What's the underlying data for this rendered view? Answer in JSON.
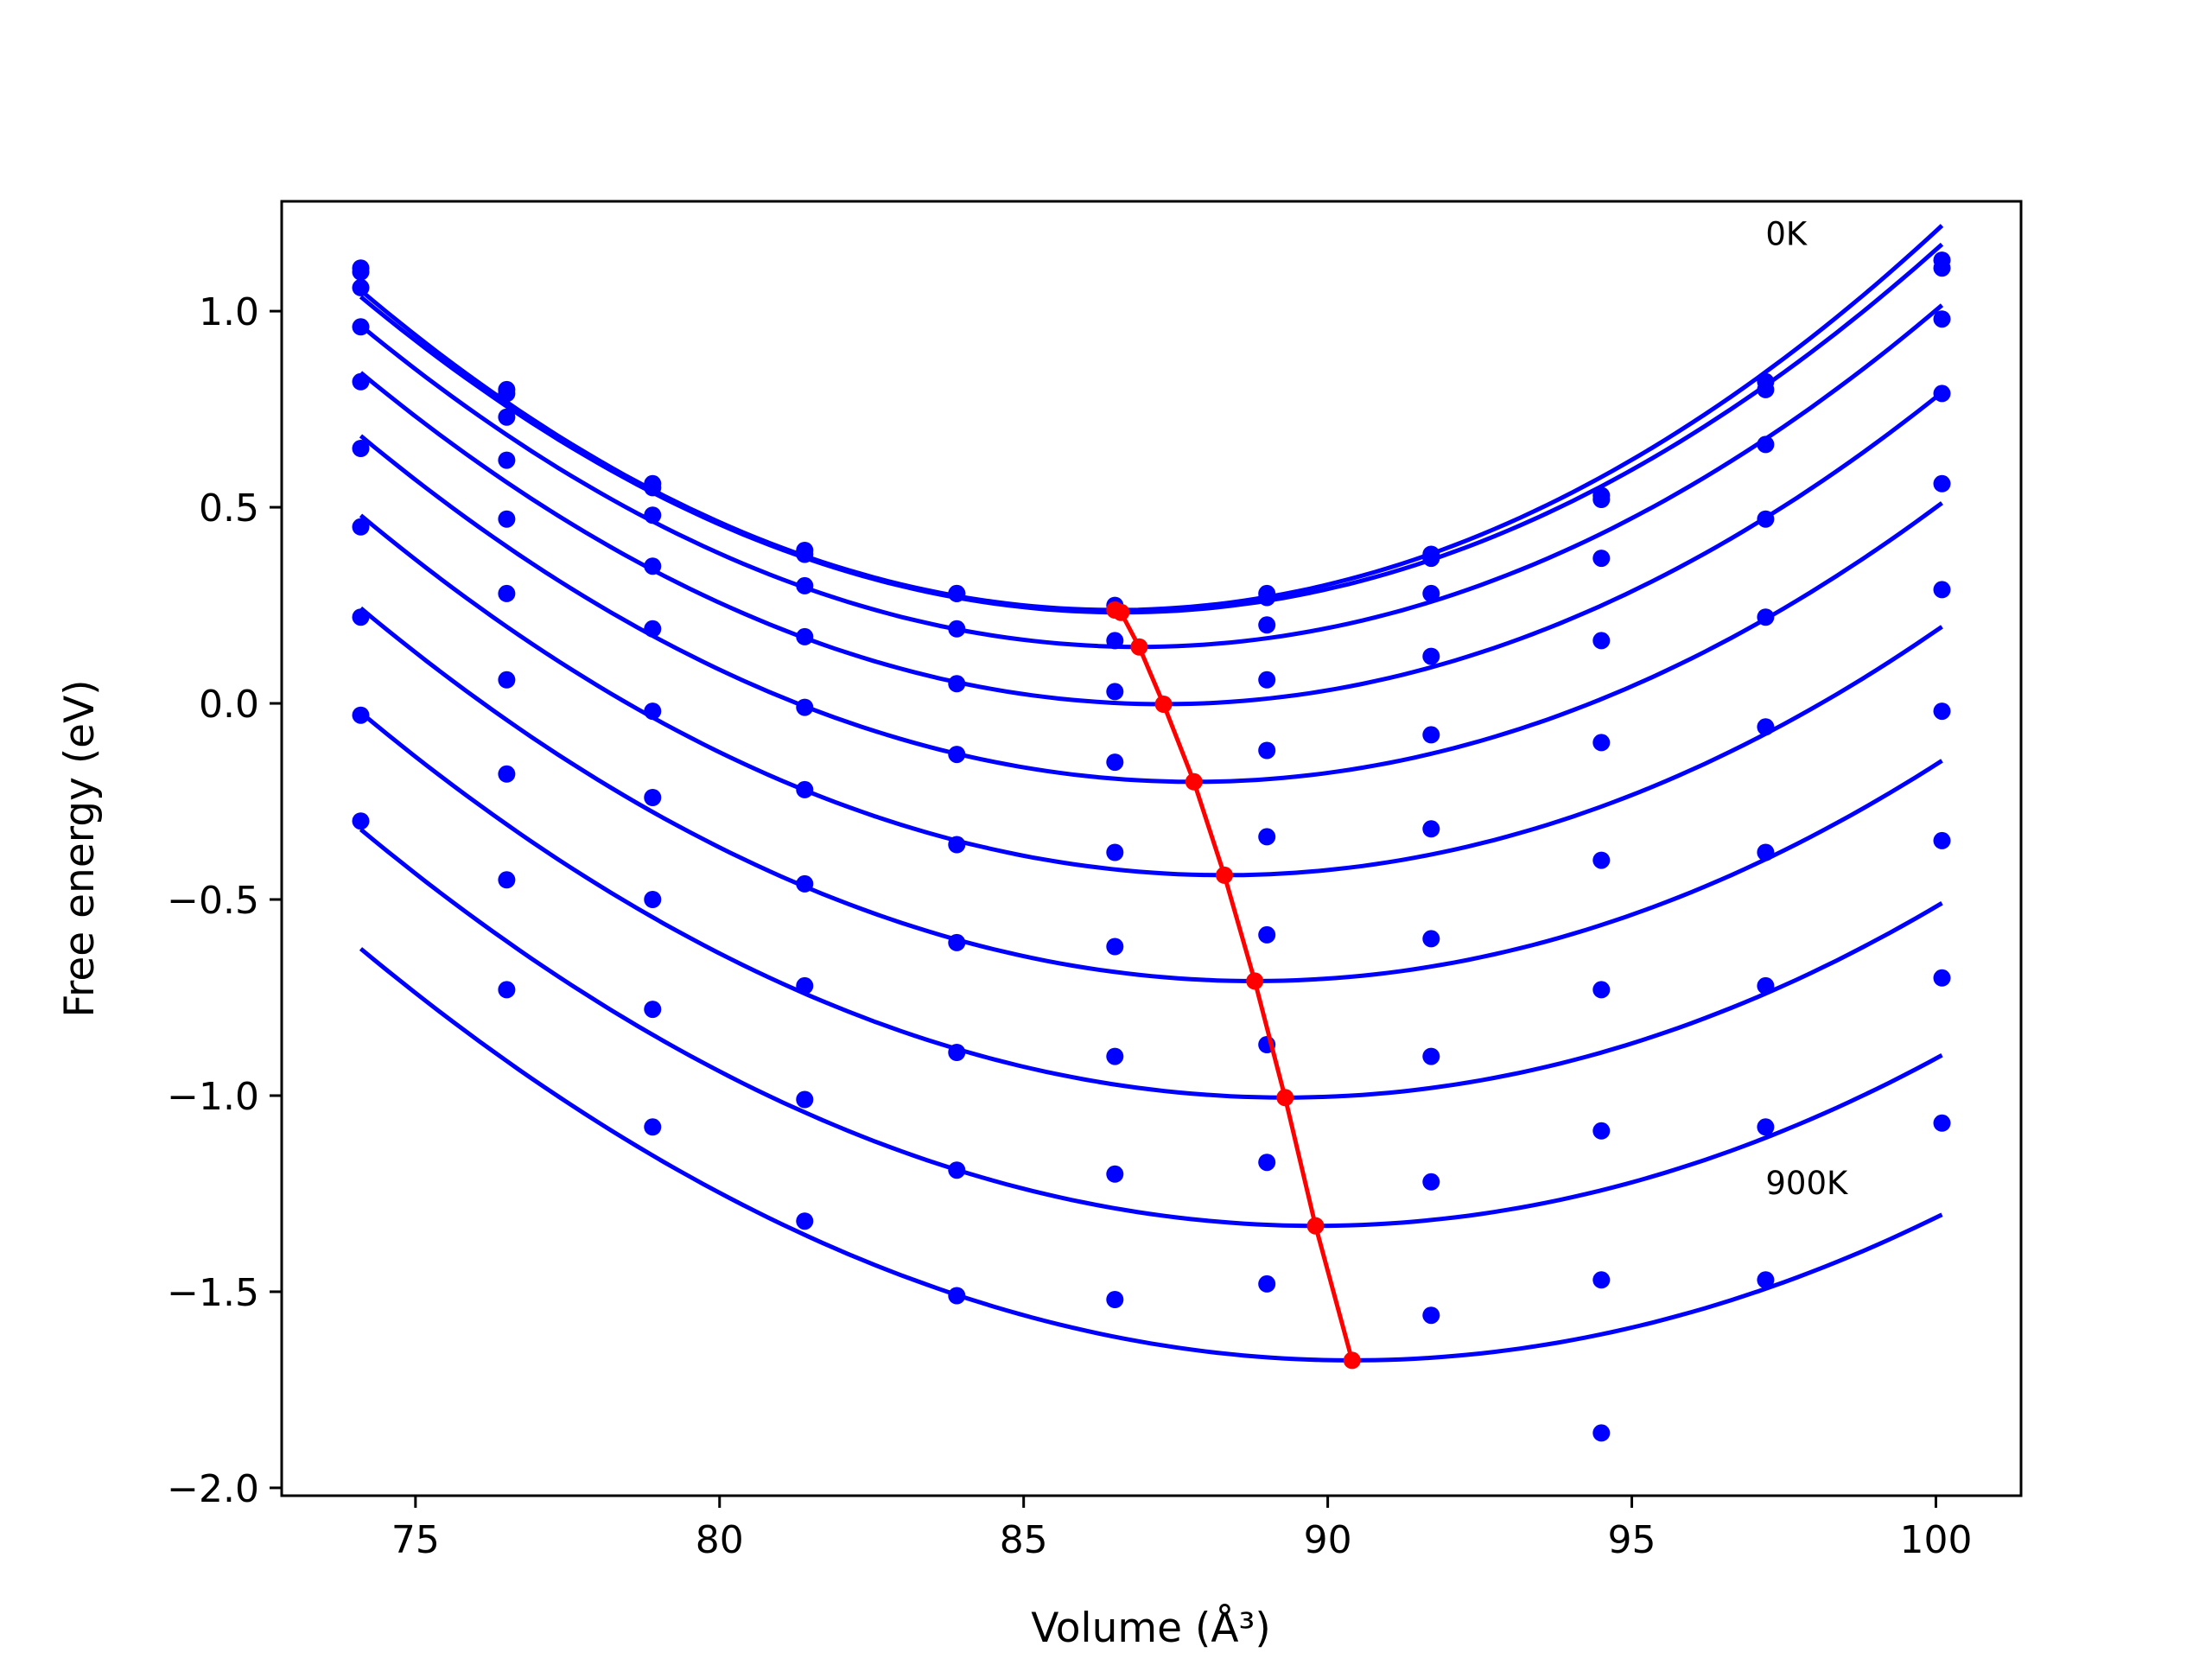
{
  "chart_data": {
    "type": "scatter",
    "title": "",
    "xlabel": "Volume (Å³)",
    "ylabel": "Free energy (eV)",
    "xlim": [
      72.8,
      101.4
    ],
    "ylim": [
      -2.02,
      1.28
    ],
    "xticks": [
      75,
      80,
      85,
      90,
      95,
      100
    ],
    "xtick_labels": [
      "75",
      "80",
      "85",
      "90",
      "95",
      "100"
    ],
    "yticks": [
      1.0,
      0.5,
      0.0,
      -0.5,
      -1.0,
      -1.5,
      -2.0
    ],
    "ytick_labels": [
      "1.0",
      "0.5",
      "0.0",
      "−0.5",
      "−1.0",
      "−1.5",
      "−2.0"
    ],
    "grid": false,
    "legend": null,
    "annotations": [
      {
        "text": "0K",
        "x": 97.2,
        "y": 1.2
      },
      {
        "text": "900K",
        "x": 97.2,
        "y": -1.22
      }
    ],
    "volumes": [
      74.1,
      76.5,
      78.9,
      81.4,
      83.9,
      86.5,
      89.0,
      91.7,
      94.5,
      97.2,
      100.1
    ],
    "series": [
      {
        "energies": [
          1.11,
          0.8,
          0.56,
          0.39,
          0.28,
          0.25,
          0.28,
          0.38,
          0.53,
          0.82,
          1.13
        ],
        "fit": {
          "v0": 86.5,
          "e0": 0.238,
          "a": 0.0053
        }
      },
      {
        "energies": [
          1.1,
          0.79,
          0.55,
          0.38,
          0.28,
          0.24,
          0.27,
          0.37,
          0.52,
          0.8,
          1.11
        ],
        "fit": {
          "v0": 86.6,
          "e0": 0.232,
          "a": 0.00515
        }
      },
      {
        "energies": [
          1.06,
          0.73,
          0.48,
          0.3,
          0.19,
          0.16,
          0.2,
          0.28,
          0.37,
          0.66,
          0.98
        ],
        "fit": {
          "v0": 86.9,
          "e0": 0.144,
          "a": 0.005
        }
      },
      {
        "energies": [
          0.96,
          0.62,
          0.35,
          0.17,
          0.05,
          0.03,
          0.06,
          0.12,
          0.16,
          0.47,
          0.79
        ],
        "fit": {
          "v0": 87.3,
          "e0": -0.002,
          "a": 0.00485
        }
      },
      {
        "energies": [
          0.82,
          0.47,
          0.19,
          -0.01,
          -0.13,
          -0.15,
          -0.12,
          -0.08,
          -0.1,
          0.22,
          0.56
        ],
        "fit": {
          "v0": 87.8,
          "e0": -0.2,
          "a": 0.0047
        }
      },
      {
        "energies": [
          0.65,
          0.28,
          -0.02,
          -0.22,
          -0.36,
          -0.38,
          -0.34,
          -0.32,
          -0.4,
          -0.06,
          0.29
        ],
        "fit": {
          "v0": 88.3,
          "e0": -0.438,
          "a": 0.00455
        }
      },
      {
        "energies": [
          0.45,
          0.06,
          -0.24,
          -0.46,
          -0.61,
          -0.62,
          -0.59,
          -0.6,
          -0.73,
          -0.38,
          -0.02
        ],
        "fit": {
          "v0": 88.8,
          "e0": -0.708,
          "a": 0.0044
        }
      },
      {
        "energies": [
          0.22,
          -0.18,
          -0.5,
          -0.72,
          -0.89,
          -0.9,
          -0.87,
          -0.9,
          -1.09,
          -0.72,
          -0.35
        ],
        "fit": {
          "v0": 89.3,
          "e0": -1.005,
          "a": 0.00425
        }
      },
      {
        "energies": [
          -0.03,
          -0.45,
          -0.78,
          -1.01,
          -1.19,
          -1.2,
          -1.17,
          -1.22,
          -1.47,
          -1.08,
          -0.7
        ],
        "fit": {
          "v0": 89.8,
          "e0": -1.332,
          "a": 0.0041
        }
      },
      {
        "energies": [
          -0.3,
          -0.73,
          -1.08,
          -1.32,
          -1.51,
          -1.52,
          -1.48,
          -1.56,
          -1.86,
          -1.47,
          -1.07
        ],
        "fit": {
          "v0": 90.4,
          "e0": -1.675,
          "a": 0.00395
        }
      }
    ],
    "minima_path": {
      "x": [
        86.5,
        86.6,
        86.9,
        87.3,
        87.8,
        88.3,
        88.8,
        89.3,
        89.8,
        90.4
      ],
      "y": [
        0.238,
        0.232,
        0.144,
        -0.002,
        -0.2,
        -0.438,
        -0.708,
        -1.005,
        -1.332,
        -1.675
      ]
    },
    "colors": {
      "data": "#0000ff",
      "minima": "#ff0000",
      "axes": "#000000"
    }
  }
}
